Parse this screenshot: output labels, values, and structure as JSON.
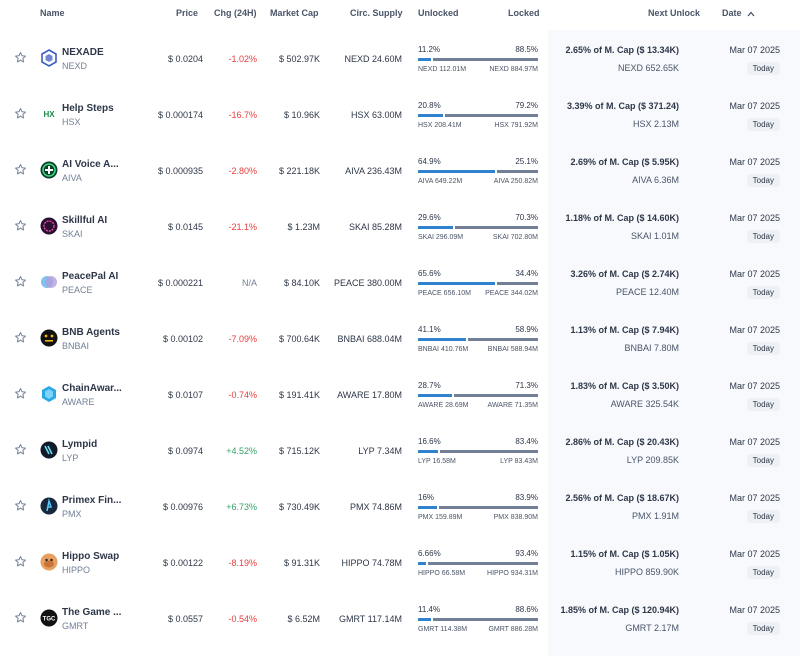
{
  "header": {
    "name": "Name",
    "price": "Price",
    "chg": "Chg (24H)",
    "mcap": "Market Cap",
    "supply": "Circ. Supply",
    "unlocked": "Unlocked",
    "locked": "Locked",
    "next_unlock": "Next Unlock",
    "date": "Date"
  },
  "colors": {
    "unlocked_bar": "#3182ce",
    "locked_bar": "#718096",
    "negative": "#e53e3e",
    "positive": "#38a169"
  },
  "rows": [
    {
      "name": "NEXADE",
      "symbol": "NEXD",
      "logo_icon": "nexade-logo",
      "logo_color": "#ffffff",
      "price": "$ 0.0204",
      "chg": "-1.02%",
      "chg_dir": "neg",
      "mcap": "$ 502.97K",
      "supply": "NEXD 24.60M",
      "unlocked_pct": "11.2%",
      "locked_pct": "88.5%",
      "unlocked_frac": 0.112,
      "unlocked_amt": "NEXD 112.01M",
      "locked_amt": "NEXD 884.97M",
      "next_pct": "2.65% of M. Cap ($ 13.34K)",
      "next_amt": "NEXD 652.65K",
      "date": "Mar 07 2025",
      "badge": "Today"
    },
    {
      "name": "Help Steps",
      "symbol": "HSX",
      "logo_icon": "hsx-logo",
      "logo_color": "#ffffff",
      "price": "$ 0.000174",
      "chg": "-16.7%",
      "chg_dir": "neg",
      "mcap": "$ 10.96K",
      "supply": "HSX 63.00M",
      "unlocked_pct": "20.8%",
      "locked_pct": "79.2%",
      "unlocked_frac": 0.208,
      "unlocked_amt": "HSX 208.41M",
      "locked_amt": "HSX 791.92M",
      "next_pct": "3.39% of M. Cap ($ 371.24)",
      "next_amt": "HSX 2.13M",
      "date": "Mar 07 2025",
      "badge": "Today"
    },
    {
      "name": "AI Voice A...",
      "symbol": "AIVA",
      "logo_icon": "aiva-logo",
      "logo_color": "#1c7c4c",
      "price": "$ 0.000935",
      "chg": "-2.80%",
      "chg_dir": "neg",
      "mcap": "$ 221.18K",
      "supply": "AIVA 236.43M",
      "unlocked_pct": "64.9%",
      "locked_pct": "25.1%",
      "unlocked_frac": 0.649,
      "unlocked_amt": "AIVA 649.22M",
      "locked_amt": "AIVA 250.82M",
      "next_pct": "2.69% of M. Cap ($ 5.95K)",
      "next_amt": "AIVA 6.36M",
      "date": "Mar 07 2025",
      "badge": "Today"
    },
    {
      "name": "Skillful AI",
      "symbol": "SKAI",
      "logo_icon": "skai-logo",
      "logo_color": "#3a1540",
      "price": "$ 0.0145",
      "chg": "-21.1%",
      "chg_dir": "neg",
      "mcap": "$ 1.23M",
      "supply": "SKAI 85.28M",
      "unlocked_pct": "29.6%",
      "locked_pct": "70.3%",
      "unlocked_frac": 0.296,
      "unlocked_amt": "SKAI 296.09M",
      "locked_amt": "SKAI 702.80M",
      "next_pct": "1.18% of M. Cap ($ 14.60K)",
      "next_amt": "SKAI 1.01M",
      "date": "Mar 07 2025",
      "badge": "Today"
    },
    {
      "name": "PeacePal AI",
      "symbol": "PEACE",
      "logo_icon": "peace-logo",
      "logo_color": "#6fb6ea",
      "price": "$ 0.000221",
      "chg": "N/A",
      "chg_dir": "na",
      "mcap": "$ 84.10K",
      "supply": "PEACE 380.00M",
      "unlocked_pct": "65.6%",
      "locked_pct": "34.4%",
      "unlocked_frac": 0.656,
      "unlocked_amt": "PEACE 656.10M",
      "locked_amt": "PEACE 344.02M",
      "next_pct": "3.26% of M. Cap ($ 2.74K)",
      "next_amt": "PEACE 12.40M",
      "date": "Mar 07 2025",
      "badge": "Today"
    },
    {
      "name": "BNB Agents",
      "symbol": "BNBAI",
      "logo_icon": "bnbai-logo",
      "logo_color": "#111111",
      "price": "$ 0.00102",
      "chg": "-7.09%",
      "chg_dir": "neg",
      "mcap": "$ 700.64K",
      "supply": "BNBAI 688.04M",
      "unlocked_pct": "41.1%",
      "locked_pct": "58.9%",
      "unlocked_frac": 0.411,
      "unlocked_amt": "BNBAI 410.76M",
      "locked_amt": "BNBAI 588.94M",
      "next_pct": "1.13% of M. Cap ($ 7.94K)",
      "next_amt": "BNBAI 7.80M",
      "date": "Mar 07 2025",
      "badge": "Today"
    },
    {
      "name": "ChainAwar...",
      "symbol": "AWARE",
      "logo_icon": "aware-logo",
      "logo_color": "#29a8e8",
      "price": "$ 0.0107",
      "chg": "-0.74%",
      "chg_dir": "neg",
      "mcap": "$ 191.41K",
      "supply": "AWARE 17.80M",
      "unlocked_pct": "28.7%",
      "locked_pct": "71.3%",
      "unlocked_frac": 0.287,
      "unlocked_amt": "AWARE 28.69M",
      "locked_amt": "AWARE 71.35M",
      "next_pct": "1.83% of M. Cap ($ 3.50K)",
      "next_amt": "AWARE 325.54K",
      "date": "Mar 07 2025",
      "badge": "Today"
    },
    {
      "name": "Lympid",
      "symbol": "LYP",
      "logo_icon": "lympid-logo",
      "logo_color": "#0f1a2a",
      "price": "$ 0.0974",
      "chg": "+4.52%",
      "chg_dir": "pos",
      "mcap": "$ 715.12K",
      "supply": "LYP 7.34M",
      "unlocked_pct": "16.6%",
      "locked_pct": "83.4%",
      "unlocked_frac": 0.166,
      "unlocked_amt": "LYP 16.58M",
      "locked_amt": "LYP 83.43M",
      "next_pct": "2.86% of M. Cap ($ 20.43K)",
      "next_amt": "LYP 209.85K",
      "date": "Mar 07 2025",
      "badge": "Today"
    },
    {
      "name": "Primex Fin...",
      "symbol": "PMX",
      "logo_icon": "pmx-logo",
      "logo_color": "#16283d",
      "price": "$ 0.00976",
      "chg": "+6.73%",
      "chg_dir": "pos",
      "mcap": "$ 730.49K",
      "supply": "PMX 74.86M",
      "unlocked_pct": "16%",
      "locked_pct": "83.9%",
      "unlocked_frac": 0.16,
      "unlocked_amt": "PMX 159.89M",
      "locked_amt": "PMX 838.90M",
      "next_pct": "2.56% of M. Cap ($ 18.67K)",
      "next_amt": "PMX 1.91M",
      "date": "Mar 07 2025",
      "badge": "Today"
    },
    {
      "name": "Hippo Swap",
      "symbol": "HIPPO",
      "logo_icon": "hippo-logo",
      "logo_color": "#c9743a",
      "price": "$ 0.00122",
      "chg": "-8.19%",
      "chg_dir": "neg",
      "mcap": "$ 91.31K",
      "supply": "HIPPO 74.78M",
      "unlocked_pct": "6.66%",
      "locked_pct": "93.4%",
      "unlocked_frac": 0.0666,
      "unlocked_amt": "HIPPO 66.58M",
      "locked_amt": "HIPPO 934.31M",
      "next_pct": "1.15% of M. Cap ($ 1.05K)",
      "next_amt": "HIPPO 859.90K",
      "date": "Mar 07 2025",
      "badge": "Today"
    },
    {
      "name": "The Game ...",
      "symbol": "GMRT",
      "logo_icon": "tgc-logo",
      "logo_color": "#111111",
      "logo_text": "TGC",
      "price": "$ 0.0557",
      "chg": "-0.54%",
      "chg_dir": "neg",
      "mcap": "$ 6.52M",
      "supply": "GMRT 117.14M",
      "unlocked_pct": "11.4%",
      "locked_pct": "88.6%",
      "unlocked_frac": 0.114,
      "unlocked_amt": "GMRT 114.38M",
      "locked_amt": "GMRT 886.28M",
      "next_pct": "1.85% of M. Cap ($ 120.94K)",
      "next_amt": "GMRT 2.17M",
      "date": "Mar 07 2025",
      "badge": "Today"
    }
  ]
}
